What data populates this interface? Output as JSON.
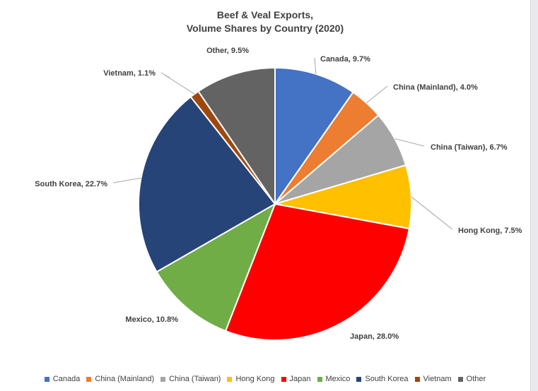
{
  "chart_data": {
    "type": "pie",
    "title": "Beef & Veal Exports,",
    "subtitle": "Volume Shares by Country (2020)",
    "legend_position": "bottom",
    "categories": [
      "Canada",
      "China (Mainland)",
      "China (Taiwan)",
      "Hong Kong",
      "Japan",
      "Mexico",
      "South Korea",
      "Vietnam",
      "Other"
    ],
    "values": [
      9.7,
      4.0,
      6.7,
      7.5,
      28.0,
      10.8,
      22.7,
      1.1,
      9.5
    ],
    "unit": "%",
    "data_labels": [
      "Canada, 9.7%",
      "China (Mainland), 4.0%",
      "China (Taiwan), 6.7%",
      "Hong Kong, 7.5%",
      "Japan, 28.0%",
      "Mexico, 10.8%",
      "South Korea, 22.7%",
      "Vietnam, 1.1%",
      "Other, 9.5%"
    ],
    "colors": [
      "#4472c4",
      "#ed7d31",
      "#a5a5a5",
      "#ffc000",
      "#ff0000",
      "#70ad47",
      "#264478",
      "#9e480e",
      "#636363"
    ]
  }
}
